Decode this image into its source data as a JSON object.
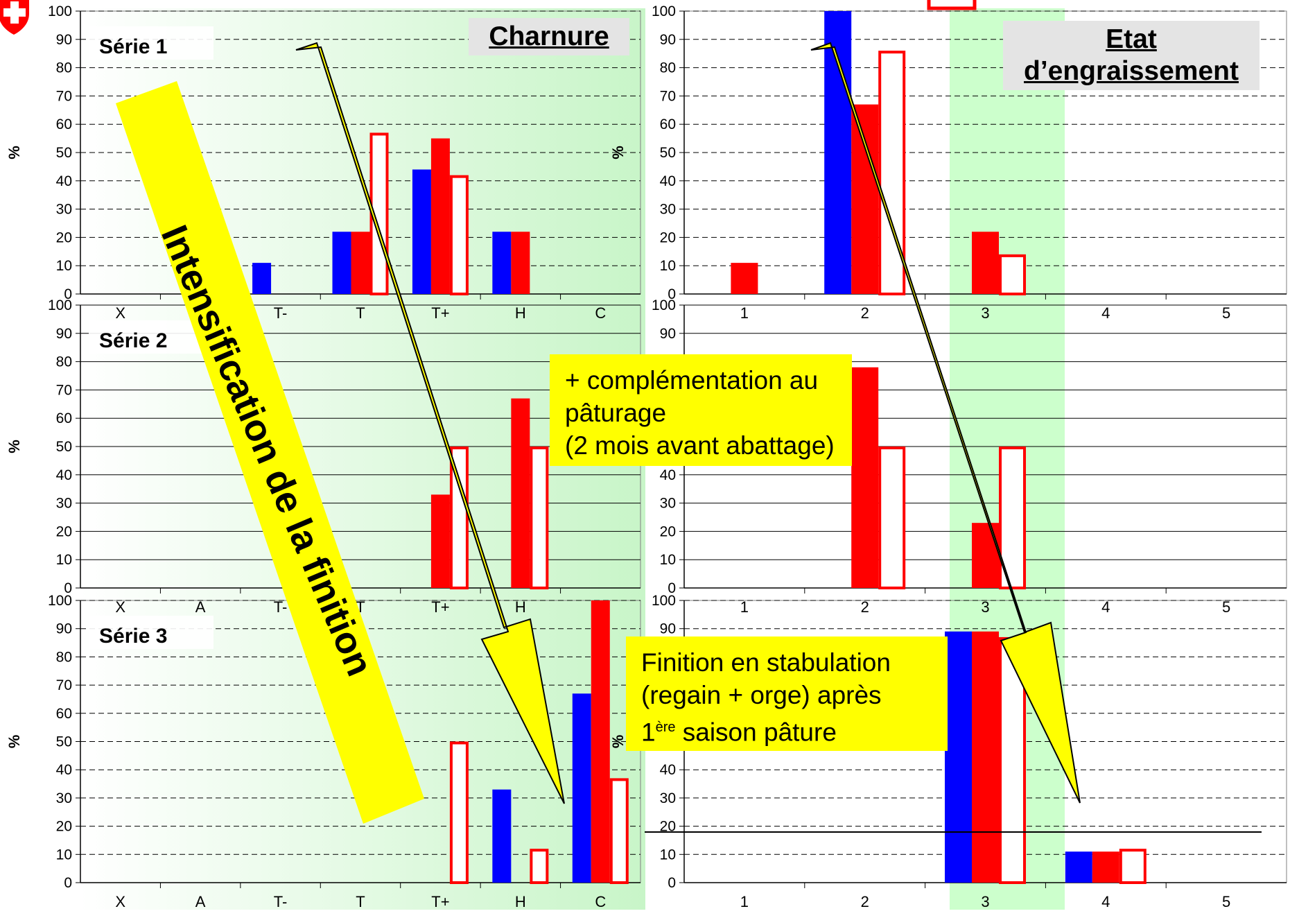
{
  "colors": {
    "blue": "#0000ff",
    "red": "#ff0000",
    "outline": "#ff0000",
    "yellow": "#ffff00",
    "green_band": "#ccffcc",
    "label_box": "#e4e4e4"
  },
  "left_title": "Charnure",
  "right_title": "Etat d’engraissement",
  "ylabel": "%",
  "banner": "Intensification de la finition",
  "note_serie2": {
    "line1": "+ complémentation au",
    "line2": "pâturage",
    "line3": "(2 mois avant abattage)"
  },
  "note_serie3": {
    "line1": "Finition en stabulation",
    "line2": "(regain + orge) après",
    "line3_num": "1",
    "line3_sup": "ère",
    "line3_rest": " saison pâture"
  },
  "chart_data": [
    {
      "type": "bar",
      "panel": "Série 1 - Charnure",
      "label": "Série 1",
      "categories": [
        "X",
        "A",
        "T-",
        "T",
        "T+",
        "H",
        "C"
      ],
      "visible_category_labels": [
        "X",
        "",
        "T-",
        "T",
        "T+",
        "H",
        "C"
      ],
      "ylim": [
        0,
        100
      ],
      "yticks": [
        0,
        10,
        20,
        30,
        40,
        50,
        60,
        70,
        80,
        90,
        100
      ],
      "grid": "dashed",
      "series": [
        {
          "style": "blue",
          "values": [
            0,
            0,
            11,
            22,
            44,
            22,
            0
          ]
        },
        {
          "style": "red",
          "values": [
            0,
            0,
            0,
            22,
            55,
            22,
            0
          ]
        },
        {
          "style": "outline",
          "values": [
            0,
            0,
            0,
            57,
            42,
            0,
            0
          ]
        }
      ]
    },
    {
      "type": "bar",
      "panel": "Série 1 - Etat d'engraissement",
      "label": "",
      "categories": [
        "1",
        "2",
        "3",
        "4",
        "5"
      ],
      "visible_category_labels": [
        "1",
        "2",
        "3",
        "4",
        "5"
      ],
      "ylim": [
        0,
        100
      ],
      "yticks": [
        0,
        10,
        20,
        30,
        40,
        50,
        60,
        70,
        80,
        90,
        100
      ],
      "grid": "dashed",
      "series": [
        {
          "style": "blue",
          "values": [
            0,
            100,
            0,
            0,
            0
          ]
        },
        {
          "style": "red",
          "values": [
            11,
            67,
            22,
            0,
            0
          ]
        },
        {
          "style": "outline",
          "values": [
            0,
            86,
            14,
            0,
            0
          ]
        }
      ]
    },
    {
      "type": "bar",
      "panel": "Série 2 - Charnure",
      "label": "Série 2",
      "categories": [
        "X",
        "A",
        "T-",
        "T",
        "T+",
        "H",
        "C"
      ],
      "visible_category_labels": [
        "X",
        "A",
        "T-",
        "T",
        "T+",
        "H",
        ""
      ],
      "ylim": [
        0,
        100
      ],
      "yticks": [
        0,
        10,
        20,
        30,
        40,
        50,
        60,
        70,
        80,
        90,
        100
      ],
      "grid": "solid",
      "series": [
        {
          "style": "blue",
          "values": [
            0,
            0,
            0,
            0,
            0,
            0,
            0
          ]
        },
        {
          "style": "red",
          "values": [
            0,
            0,
            0,
            0,
            33,
            67,
            0
          ]
        },
        {
          "style": "outline",
          "values": [
            0,
            0,
            0,
            0,
            50,
            50,
            0
          ]
        }
      ]
    },
    {
      "type": "bar",
      "panel": "Série 2 - Etat d'engraissement",
      "label": "",
      "categories": [
        "1",
        "2",
        "3",
        "4",
        "5"
      ],
      "visible_category_labels": [
        "1",
        "2",
        "3",
        "4",
        "5"
      ],
      "ylim": [
        0,
        100
      ],
      "yticks": [
        0,
        10,
        20,
        30,
        40,
        "",
        "",
        "",
        80,
        90,
        100
      ],
      "grid": "solid",
      "series": [
        {
          "style": "blue",
          "values": [
            0,
            0,
            0,
            0,
            0
          ]
        },
        {
          "style": "red",
          "values": [
            0,
            78,
            23,
            0,
            0
          ]
        },
        {
          "style": "outline",
          "values": [
            0,
            50,
            50,
            0,
            0
          ]
        }
      ]
    },
    {
      "type": "bar",
      "panel": "Série 3 - Charnure",
      "label": "Série 3",
      "categories": [
        "X",
        "A",
        "T-",
        "T",
        "T+",
        "H",
        "C"
      ],
      "visible_category_labels": [
        "X",
        "A",
        "T-",
        "T",
        "T+",
        "H",
        "C"
      ],
      "ylim": [
        0,
        100
      ],
      "yticks": [
        0,
        10,
        20,
        30,
        40,
        50,
        60,
        70,
        80,
        90,
        100
      ],
      "grid": "dashed",
      "series": [
        {
          "style": "blue",
          "values": [
            0,
            0,
            0,
            0,
            0,
            33,
            67
          ]
        },
        {
          "style": "red",
          "values": [
            0,
            0,
            0,
            0,
            0,
            0,
            100
          ]
        },
        {
          "style": "outline",
          "values": [
            0,
            0,
            0,
            0,
            50,
            12,
            37
          ]
        }
      ]
    },
    {
      "type": "bar",
      "panel": "Série 3 - Etat d'engraissement",
      "label": "",
      "categories": [
        "1",
        "2",
        "3",
        "4",
        "5"
      ],
      "visible_category_labels": [
        "1",
        "2",
        "3",
        "4",
        "5"
      ],
      "ylim": [
        0,
        100
      ],
      "yticks": [
        0,
        10,
        20,
        30,
        40,
        "",
        "",
        "",
        "",
        90,
        100
      ],
      "grid": "dashed",
      "series": [
        {
          "style": "blue",
          "values": [
            0,
            0,
            89,
            11,
            0
          ]
        },
        {
          "style": "red",
          "values": [
            0,
            0,
            89,
            11,
            0
          ]
        },
        {
          "style": "outline",
          "values": [
            0,
            0,
            87,
            12,
            0
          ]
        }
      ]
    }
  ]
}
